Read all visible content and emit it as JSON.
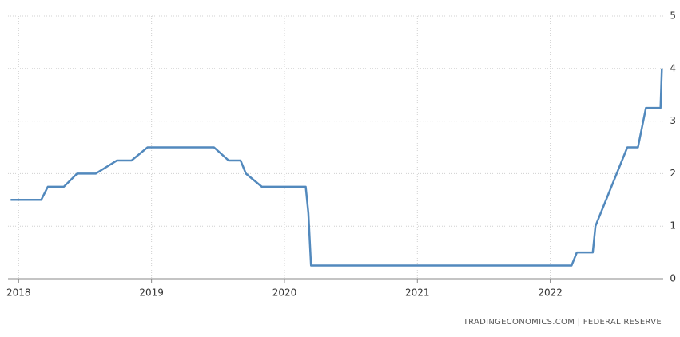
{
  "chart_data": {
    "type": "line",
    "source": "TRADINGECONOMICS.COM | FEDERAL RESERVE",
    "x": [
      2017.94,
      2018.17,
      2018.22,
      2018.34,
      2018.44,
      2018.58,
      2018.74,
      2018.85,
      2018.97,
      2019.47,
      2019.58,
      2019.67,
      2019.71,
      2019.83,
      2020.16,
      2020.18,
      2020.2,
      2022.16,
      2022.2,
      2022.32,
      2022.34,
      2022.58,
      2022.66,
      2022.72,
      2022.83,
      2022.84
    ],
    "series": [
      {
        "color": "#5289bd",
        "values": [
          1.5,
          1.5,
          1.75,
          1.75,
          2.0,
          2.0,
          2.25,
          2.25,
          2.5,
          2.5,
          2.25,
          2.25,
          2.0,
          1.75,
          1.75,
          1.25,
          0.25,
          0.25,
          0.5,
          0.5,
          1.0,
          2.5,
          2.5,
          3.25,
          3.25,
          4.0
        ]
      }
    ],
    "xlim": [
      2017.92,
      2022.85
    ],
    "xticks": [
      2018,
      2019,
      2020,
      2021,
      2022
    ],
    "ylim": [
      0,
      5
    ],
    "yticks": [
      0,
      1,
      2,
      3,
      4,
      5
    ],
    "grid": true
  }
}
